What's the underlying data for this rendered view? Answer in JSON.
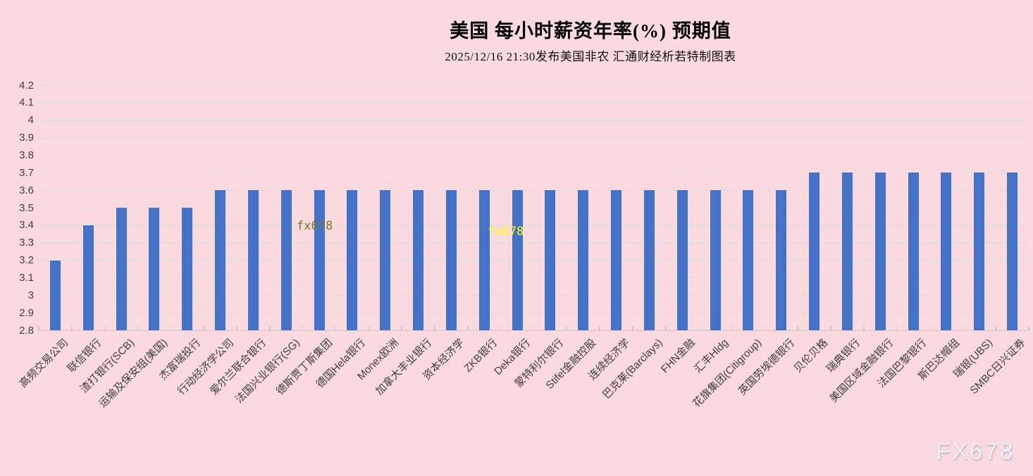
{
  "header": {
    "title": "美国 每小时薪资年率(%) 预期值",
    "subtitle": "2025/12/16 21:30发布美国非农 汇通财经析若特制图表"
  },
  "watermarks": {
    "inner_left": "fx678",
    "inner_right": "fx678",
    "corner": "FX678"
  },
  "colors": {
    "background": "#FADADF",
    "bar": "#4472C8",
    "gridline": "#DEDEDE",
    "axis_line": "#C9C9C9",
    "axis_text": "#3F3F3F",
    "watermark_inner_left": "#857616",
    "watermark_inner_right": "#FFFF00",
    "watermark_corner": "#E9F0F8"
  },
  "chart_data": {
    "type": "bar",
    "title": "美国 每小时薪资年率(%) 预期值",
    "subtitle": "2025/12/16 21:30发布美国非农 汇通财经析若特制图表",
    "xlabel": "",
    "ylabel": "",
    "ylim": [
      2.8,
      4.2
    ],
    "ytick_labels": [
      "4.2",
      "4.1",
      "4",
      "3.9",
      "3.8",
      "3.7",
      "3.6",
      "3.5",
      "3.4",
      "3.3",
      "3.2",
      "3.1",
      "3",
      "2.9",
      "2.8"
    ],
    "grid": true,
    "legend": false,
    "categories": [
      "高频交易公司",
      "联信银行",
      "渣打银行(SCB)",
      "运输及保安组(美国)",
      "杰富瑞投行",
      "行动经济学公司",
      "爱尔兰联合银行",
      "法国兴业银行(SG)",
      "德斯贾丁斯集团",
      "德国Hela银行",
      "Monex欧洲",
      "加拿大丰业银行",
      "资本经济学",
      "ZKB银行",
      "Deka银行",
      "蒙特利尔银行",
      "Stifel金融控股",
      "连续经济学",
      "巴克莱(Barclays)",
      "FHN金融",
      "汇丰Hldg",
      "花旗集团(Citigroup)",
      "英国劳埃德银行",
      "贝伦贝格",
      "瑞典银行",
      "美国区域金融银行",
      "法国巴黎银行",
      "斯巴达帽组",
      "瑞银(UBS)",
      "SMBC日兴证券"
    ],
    "values": [
      3.2,
      3.4,
      3.5,
      3.5,
      3.5,
      3.6,
      3.6,
      3.6,
      3.6,
      3.6,
      3.6,
      3.6,
      3.6,
      3.6,
      3.6,
      3.6,
      3.6,
      3.6,
      3.6,
      3.6,
      3.6,
      3.6,
      3.6,
      3.7,
      3.7,
      3.7,
      3.7,
      3.7,
      3.7,
      3.7
    ]
  }
}
